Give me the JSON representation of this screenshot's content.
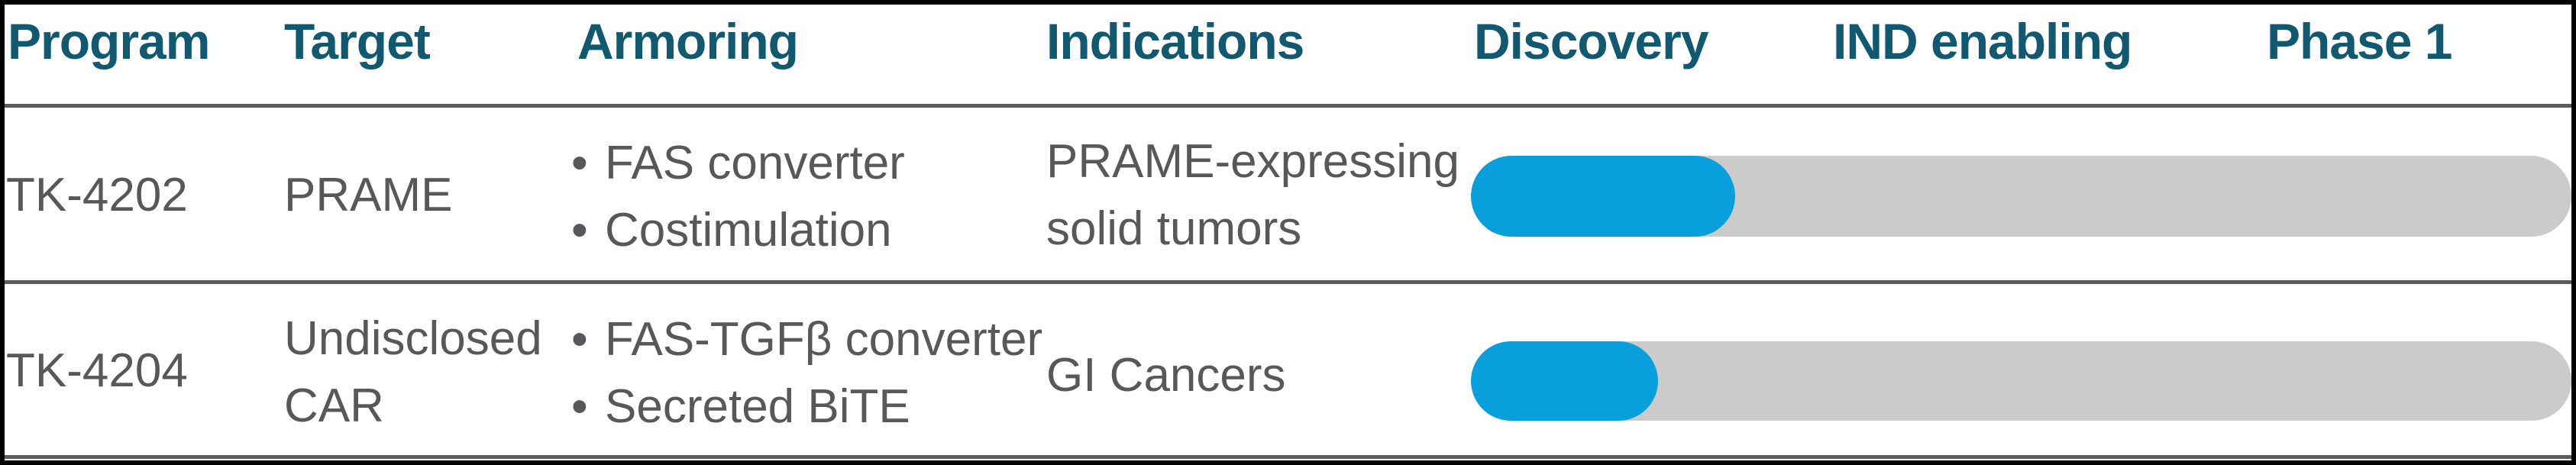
{
  "chart_data": {
    "type": "table",
    "title": "",
    "columns": [
      "Program",
      "Target",
      "Armoring",
      "Indications"
    ],
    "phase_columns": [
      "Discovery",
      "IND enabling",
      "Phase 1"
    ],
    "bullet_char": "•",
    "rows": [
      {
        "program": "TK-4202",
        "target": "PRAME",
        "armoring": [
          "FAS converter",
          "Costimulation"
        ],
        "indications": "PRAME-expressing solid tumors",
        "progress_pct": 24,
        "current_phase": "Discovery"
      },
      {
        "program": "TK-4204",
        "target": "Undisclosed CAR",
        "armoring": [
          "FAS-TGFβ converter",
          "Secreted BiTE"
        ],
        "indications": "GI Cancers",
        "progress_pct": 17,
        "current_phase": "Discovery"
      }
    ],
    "layout": {
      "legend": "none",
      "grid": "horizontal rules between rows",
      "bar_style": "rounded pill progress bars spanning Discovery through Phase 1"
    },
    "colors": {
      "header_text": "#115871",
      "body_text": "#58585A",
      "bar_track": "#CBCBCB",
      "bar_fill": "#07A0DC",
      "rule": "#5C5C5C",
      "frame": "#000000"
    }
  }
}
